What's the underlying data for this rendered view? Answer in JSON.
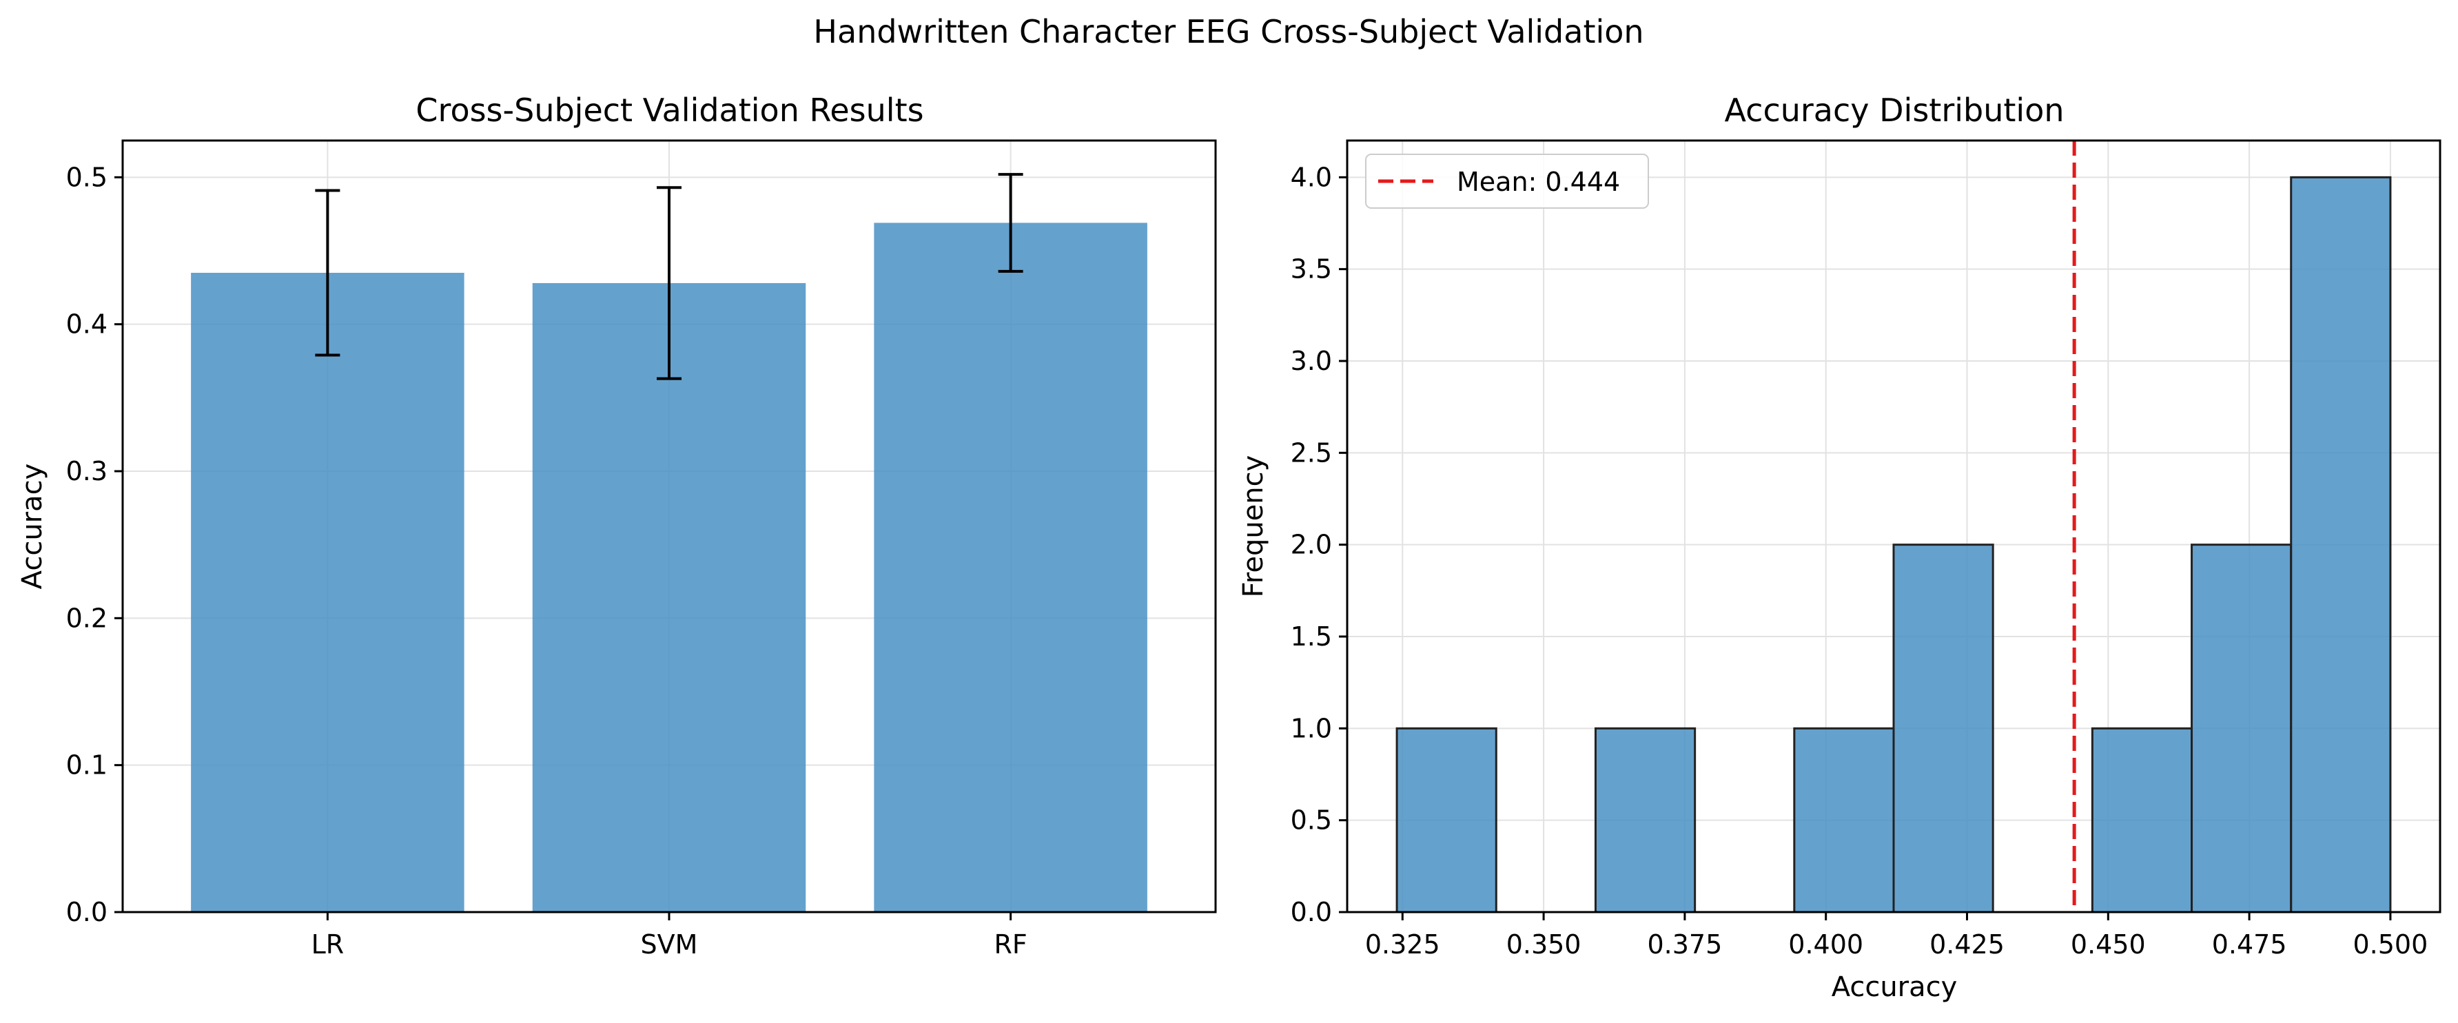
{
  "figure": {
    "suptitle": "Handwritten Character EEG Cross-Subject Validation"
  },
  "chart_data": [
    {
      "type": "bar",
      "title": "Cross-Subject Validation Results",
      "xlabel": "",
      "ylabel": "Accuracy",
      "categories": [
        "LR",
        "SVM",
        "RF"
      ],
      "values": [
        0.435,
        0.428,
        0.469
      ],
      "errors": [
        0.056,
        0.065,
        0.033
      ],
      "ylim": [
        0,
        0.525
      ],
      "yticks": [
        0.0,
        0.1,
        0.2,
        0.3,
        0.4,
        0.5
      ],
      "ytick_labels": [
        "0.0",
        "0.1",
        "0.2",
        "0.3",
        "0.4",
        "0.5"
      ],
      "grid": true,
      "bar_color": "#4a90c4"
    },
    {
      "type": "histogram",
      "title": "Accuracy Distribution",
      "xlabel": "Accuracy",
      "ylabel": "Frequency",
      "bins": [
        {
          "x0": 0.324,
          "x1": 0.3416,
          "count": 1
        },
        {
          "x0": 0.3416,
          "x1": 0.3592,
          "count": 0
        },
        {
          "x0": 0.3592,
          "x1": 0.3768,
          "count": 1
        },
        {
          "x0": 0.3768,
          "x1": 0.3944,
          "count": 0
        },
        {
          "x0": 0.3944,
          "x1": 0.412,
          "count": 1
        },
        {
          "x0": 0.412,
          "x1": 0.4296,
          "count": 2
        },
        {
          "x0": 0.4296,
          "x1": 0.4472,
          "count": 0
        },
        {
          "x0": 0.4472,
          "x1": 0.4648,
          "count": 1
        },
        {
          "x0": 0.4648,
          "x1": 0.4824,
          "count": 2
        },
        {
          "x0": 0.4824,
          "x1": 0.5,
          "count": 4
        }
      ],
      "mean": 0.444,
      "mean_label": "Mean: 0.444",
      "xlim": [
        0.3152,
        0.5088
      ],
      "ylim": [
        0,
        4.2
      ],
      "xticks": [
        0.325,
        0.35,
        0.375,
        0.4,
        0.425,
        0.45,
        0.475,
        0.5
      ],
      "xtick_labels": [
        "0.325",
        "0.350",
        "0.375",
        "0.400",
        "0.425",
        "0.450",
        "0.475",
        "0.500"
      ],
      "yticks": [
        0.0,
        0.5,
        1.0,
        1.5,
        2.0,
        2.5,
        3.0,
        3.5,
        4.0
      ],
      "ytick_labels": [
        "0.0",
        "0.5",
        "1.0",
        "1.5",
        "2.0",
        "2.5",
        "3.0",
        "3.5",
        "4.0"
      ],
      "grid": true,
      "legend_position": "top-left",
      "bar_color": "#4a90c4",
      "mean_line_color": "#e41a1c"
    }
  ]
}
